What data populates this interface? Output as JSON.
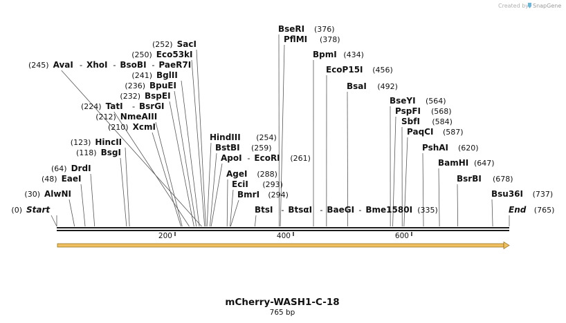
{
  "credit": "Created by",
  "brand": "SnapGene",
  "colors": {
    "line": "#555555",
    "backbone": "#1a1a1a",
    "feature": "#f0c060",
    "feature_edge": "#8a6410",
    "credit": "#b0b0b0",
    "logo": "#6cb4d8"
  },
  "sequence": {
    "name": "mCherry-WASH1-C-18",
    "length_label": "765 bp",
    "length": 765
  },
  "axis_ticks": [
    {
      "value": 200,
      "label": "200"
    },
    {
      "value": 400,
      "label": "400"
    },
    {
      "value": 600,
      "label": "600"
    }
  ],
  "feature": {
    "name": "",
    "start": 1,
    "end": 765,
    "direction": "forward"
  },
  "label_rows": [
    {
      "text": [
        {
          "pos": "(252)",
          "name": "SacI",
          "site": 252
        }
      ]
    },
    {
      "text": [
        {
          "pos": "(250)",
          "name": "Eco53kI",
          "site": 250
        }
      ]
    },
    {
      "text": [
        {
          "pos": "(245)",
          "name": "AvaI",
          "site": 245
        },
        {
          "name": "XhoI"
        },
        {
          "name": "BsoBI"
        },
        {
          "name": "PaeR7I"
        }
      ]
    },
    {
      "text": [
        {
          "pos": "(241)",
          "name": "BglII",
          "site": 241
        }
      ]
    },
    {
      "text": [
        {
          "pos": "(236)",
          "name": "BpuEI",
          "site": 236
        }
      ]
    },
    {
      "text": [
        {
          "pos": "(232)",
          "name": "BspEI",
          "site": 232
        }
      ]
    },
    {
      "text": [
        {
          "pos": "(224)",
          "name": "TatI",
          "site": 224
        },
        {
          "name": "BsrGI"
        }
      ]
    },
    {
      "text": [
        {
          "pos": "(212)",
          "name": "NmeAIII",
          "site": 212
        }
      ]
    },
    {
      "text": [
        {
          "pos": "(210)",
          "name": "XcmI",
          "site": 210
        }
      ]
    },
    {
      "text": [
        {
          "pos": "(123)",
          "name": "HincII",
          "site": 123
        }
      ]
    },
    {
      "text": [
        {
          "pos": "(118)",
          "name": "BsgI",
          "site": 118
        }
      ]
    },
    {
      "text": [
        {
          "pos": "(64)",
          "name": "DrdI",
          "site": 64
        }
      ]
    },
    {
      "text": [
        {
          "pos": "(48)",
          "name": "EaeI",
          "site": 48
        }
      ]
    },
    {
      "text": [
        {
          "pos": "(30)",
          "name": "AlwNI",
          "site": 30
        }
      ]
    },
    {
      "text": [
        {
          "pos": "(0)",
          "name": "Start",
          "site": 0,
          "italic": true
        }
      ]
    }
  ],
  "right_labels": [
    {
      "name": "BseRI",
      "pos": "(376)",
      "site": 376
    },
    {
      "name": "PflMI",
      "pos": "(378)",
      "site": 378
    },
    {
      "name": "BpmI",
      "pos": "(434)",
      "site": 434
    },
    {
      "name": "EcoP15I",
      "pos": "(456)",
      "site": 456
    },
    {
      "name": "BsaI",
      "pos": "(492)",
      "site": 492
    },
    {
      "name": "BseYI",
      "pos": "(564)",
      "site": 564
    },
    {
      "name": "PspFI",
      "pos": "(568)",
      "site": 568
    },
    {
      "name": "SbfI",
      "pos": "(584)",
      "site": 584
    },
    {
      "name": "PaqCI",
      "pos": "(587)",
      "site": 587
    },
    {
      "name": "PshAI",
      "pos": "(620)",
      "site": 620
    },
    {
      "name": "BamHI",
      "pos": "(647)",
      "site": 647
    },
    {
      "name": "BsrBI",
      "pos": "(678)",
      "site": 678
    },
    {
      "name": "Bsu36I",
      "pos": "(737)",
      "site": 737
    },
    {
      "name": "End",
      "pos": "(765)",
      "site": 765,
      "italic": true
    }
  ],
  "mid_labels": [
    {
      "name": "HindIII",
      "pos": "(254)",
      "site": 254
    },
    {
      "name": "BstBI",
      "pos": "(259)",
      "site": 259
    },
    {
      "name": "ApoI",
      "pos": "(261)",
      "site": 261,
      "extra": [
        "EcoRI"
      ]
    },
    {
      "name": "AgeI",
      "pos": "(288)",
      "site": 288
    },
    {
      "name": "EciI",
      "pos": "(293)",
      "site": 293
    },
    {
      "name": "BmrI",
      "pos": "(294)",
      "site": 294
    },
    {
      "name": "BtsI",
      "pos": "(335)",
      "site": 335,
      "extra": [
        "BtsαI",
        "BaeGI",
        "Bme1580I"
      ]
    }
  ]
}
